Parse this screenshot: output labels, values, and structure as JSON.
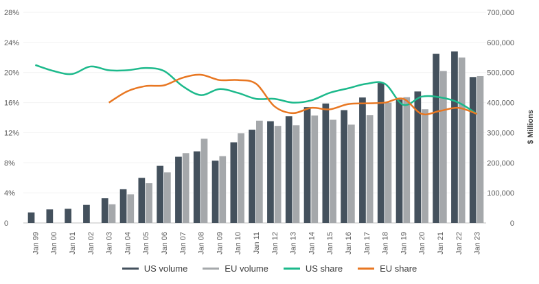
{
  "chart_data": {
    "type": "bar",
    "categories": [
      "Jan 99",
      "Jan 00",
      "Jan 01",
      "Jan 02",
      "Jan 03",
      "Jan 04",
      "Jan 05",
      "Jan 06",
      "Jan 07",
      "Jan 08",
      "Jan 09",
      "Jan 10",
      "Jan 11",
      "Jan 12",
      "Jan 13",
      "Jan 14",
      "Jan 15",
      "Jan 16",
      "Jan 17",
      "Jan 18",
      "Jan 19",
      "Jan 20",
      "Jan 21",
      "Jan 22",
      "Jan 23"
    ],
    "y_left": {
      "ticks": [
        "0",
        "4%",
        "8%",
        "12%",
        "16%",
        "20%",
        "24%",
        "28%"
      ],
      "min": 0,
      "max": 28
    },
    "y_right": {
      "label": "$ Millions",
      "ticks": [
        "0",
        "100,000",
        "200,000",
        "300,000",
        "400,000",
        "500,000",
        "600,000",
        "700,000"
      ],
      "min": 0,
      "max": 700000
    },
    "series": [
      {
        "name": "US volume",
        "kind": "bar",
        "axis": "right",
        "color": "#44515d",
        "values": [
          35000,
          45000,
          47000,
          60000,
          82000,
          112000,
          150000,
          190000,
          220000,
          238000,
          207000,
          268000,
          310000,
          338000,
          355000,
          385000,
          397000,
          375000,
          417000,
          465000,
          410000,
          437000,
          562000,
          570000,
          485000
        ]
      },
      {
        "name": "EU volume",
        "kind": "bar",
        "axis": "right",
        "color": "#a5a8ab",
        "values": [
          null,
          null,
          null,
          null,
          62000,
          95000,
          132000,
          168000,
          232000,
          280000,
          222000,
          298000,
          340000,
          322000,
          325000,
          357000,
          343000,
          327000,
          358000,
          400000,
          418000,
          378000,
          505000,
          550000,
          488000
        ]
      },
      {
        "name": "US share",
        "kind": "line",
        "axis": "left",
        "color": "#1cb98b",
        "values": [
          21.0,
          20.2,
          19.8,
          20.8,
          20.3,
          20.3,
          20.6,
          20.2,
          18.2,
          17.0,
          17.8,
          17.3,
          16.5,
          16.5,
          16.0,
          16.3,
          17.3,
          17.9,
          18.5,
          18.5,
          15.7,
          16.8,
          16.7,
          16.0,
          14.5
        ]
      },
      {
        "name": "EU share",
        "kind": "line",
        "axis": "left",
        "color": "#e87722",
        "values": [
          null,
          null,
          null,
          null,
          16.0,
          17.5,
          18.2,
          18.3,
          19.3,
          19.7,
          19.0,
          19.0,
          18.5,
          15.5,
          14.6,
          15.3,
          15.1,
          15.8,
          15.9,
          16.0,
          16.5,
          14.5,
          14.9,
          15.3,
          14.5
        ]
      }
    ],
    "legend": [
      "US volume",
      "EU volume",
      "US share",
      "EU share"
    ],
    "legend_position": "bottom"
  }
}
